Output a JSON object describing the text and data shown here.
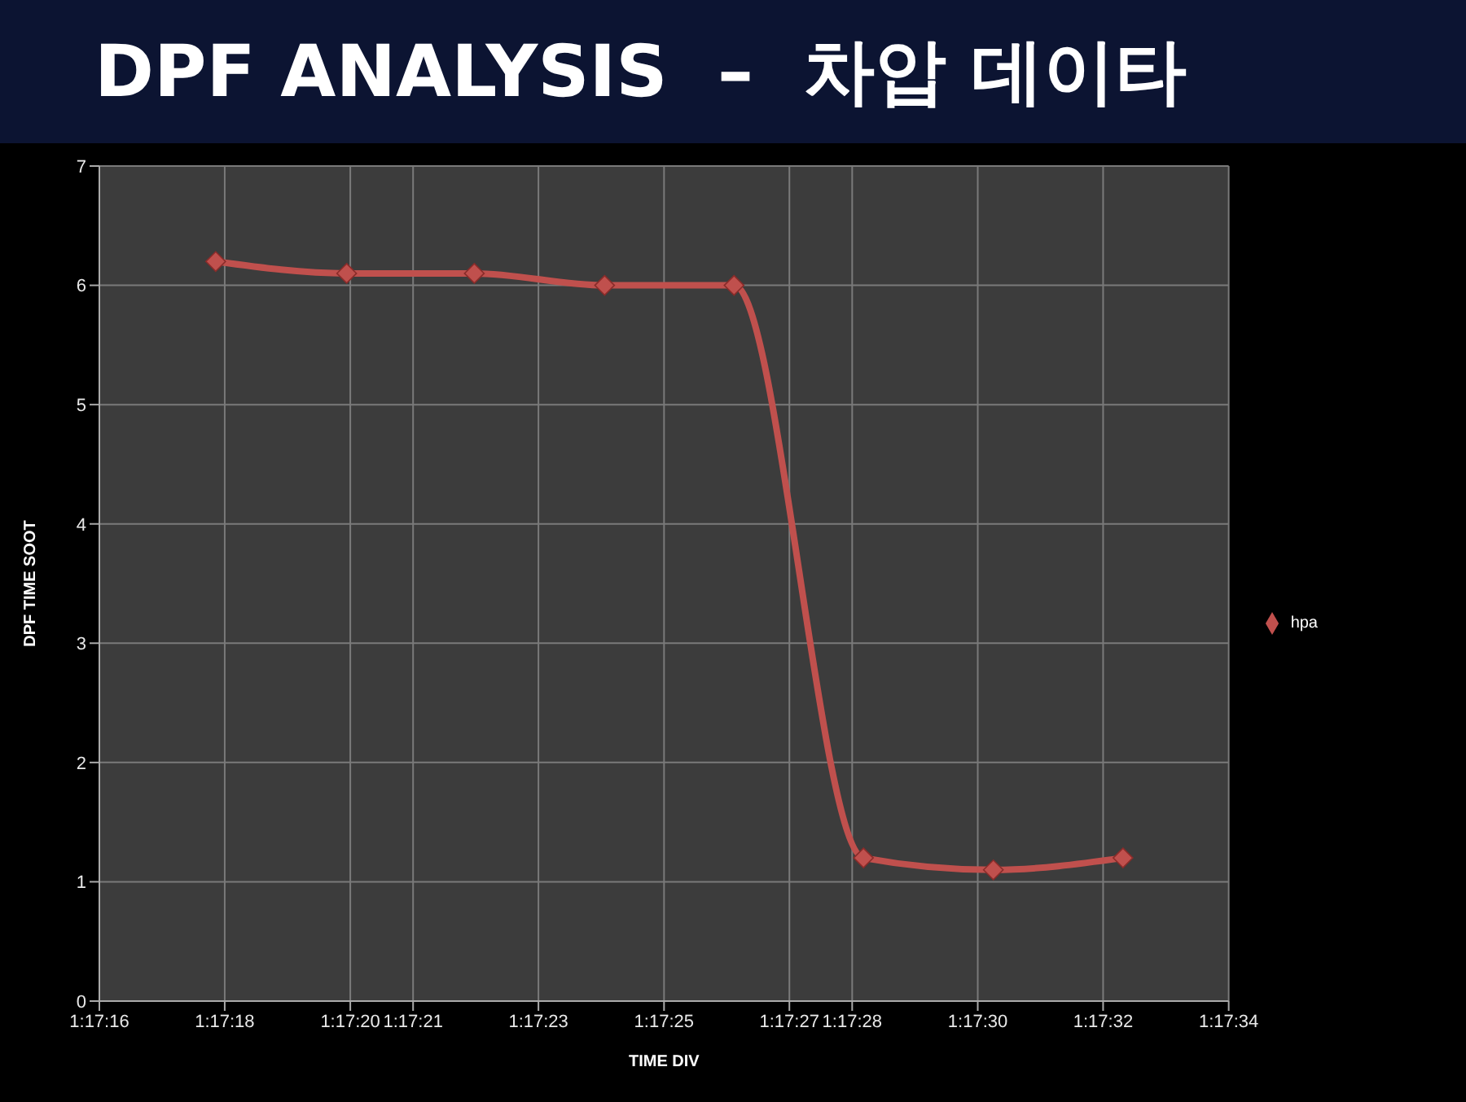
{
  "chart_data": {
    "type": "line",
    "title": "DPF ANALYSIS  –  차압 데이타",
    "xlabel": "TIME DIV",
    "ylabel": "DPF TIME SOOT",
    "x": [
      1.288293,
      1.288873,
      1.289438,
      1.290015,
      1.290588,
      1.291161,
      1.291736,
      1.29231
    ],
    "series": [
      {
        "name": "hpa",
        "color": "#c0504d",
        "values": [
          6.2,
          6.1,
          6.1,
          6.0,
          6.0,
          1.2,
          1.1,
          1.2
        ]
      }
    ],
    "xlim": [
      1.287778,
      1.292778
    ],
    "xticks": [
      {
        "value": 1.287778,
        "label": "1:17:16"
      },
      {
        "value": 1.288333,
        "label": "1:17:18"
      },
      {
        "value": 1.288889,
        "label": "1:17:20"
      },
      {
        "value": 1.289167,
        "label": "1:17:21"
      },
      {
        "value": 1.289722,
        "label": "1:17:23"
      },
      {
        "value": 1.290278,
        "label": "1:17:25"
      },
      {
        "value": 1.290833,
        "label": "1:17:27"
      },
      {
        "value": 1.291111,
        "label": "1:17:28"
      },
      {
        "value": 1.291667,
        "label": "1:17:30"
      },
      {
        "value": 1.292222,
        "label": "1:17:32"
      },
      {
        "value": 1.292778,
        "label": "1:17:34"
      }
    ],
    "ylim": [
      0,
      7
    ],
    "yticks": [
      0,
      1,
      2,
      3,
      4,
      5,
      6,
      7
    ],
    "grid": true,
    "legend": "right",
    "marker": "diamond",
    "line_style": "solid"
  }
}
